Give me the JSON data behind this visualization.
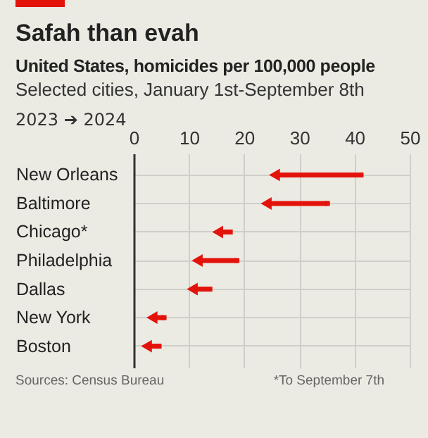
{
  "chart_data": {
    "type": "scatter",
    "orientation": "horizontal",
    "title": "Safah than evah",
    "subtitle": "United States, homicides per 100,000 people\nSelected cities, January 1st-September 8th",
    "categories": [
      "New Orleans",
      "Baltimore",
      "Chicago*",
      "Philadelphia",
      "Dallas",
      "New York",
      "Boston"
    ],
    "series": [
      {
        "color": "#e3120b",
        "marker": "square",
        "values": [
          41.2,
          35.1,
          17.5,
          18.7,
          13.8,
          5.5,
          4.6
        ]
      },
      {
        "color": "#e3120b",
        "marker": "triangle",
        "values": [
          25.5,
          24.0,
          15.2,
          11.5,
          10.6,
          3.3,
          2.3
        ]
      }
    ],
    "xlim": [
      0,
      50
    ],
    "xticks": [
      0,
      10,
      20,
      30,
      40,
      50
    ],
    "grid": true,
    "legend_title": "2023 ➔ 2024",
    "annotations": [
      "Sources: Census Bureau",
      "*To September 7th"
    ]
  }
}
